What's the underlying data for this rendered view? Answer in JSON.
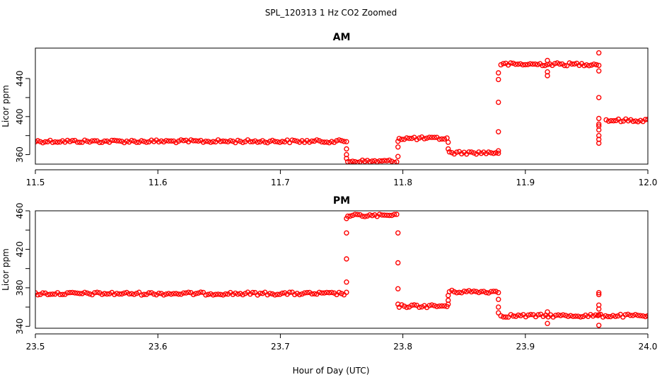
{
  "figure": {
    "suptitle": "SPL_120313 1 Hz CO2 Zoomed",
    "xlabel": "Hour of Day (UTC)",
    "point_color": "#ff0000"
  },
  "chart_data": [
    {
      "type": "scatter",
      "title": "AM",
      "xlabel": "Hour of Day (UTC)",
      "ylabel": "Licor ppm",
      "xlim": [
        11.5,
        12.0
      ],
      "ylim": [
        350,
        472
      ],
      "x_ticks": [
        "11.5",
        "11.6",
        "11.7",
        "11.8",
        "11.9",
        "12.0"
      ],
      "y_ticks": [
        "360",
        "400",
        "440"
      ],
      "marker": "open-circle",
      "color": "#ff0000",
      "segments": [
        {
          "x_start": 11.5,
          "x_end": 11.754,
          "y": 374
        },
        {
          "x_start": 11.755,
          "x_end": 11.795,
          "y": 353
        },
        {
          "x_start": 11.797,
          "x_end": 11.836,
          "y": 377
        },
        {
          "x_start": 11.838,
          "x_end": 11.878,
          "y": 362
        },
        {
          "x_start": 11.88,
          "x_end": 11.96,
          "y": 455
        },
        {
          "x_start": 11.966,
          "x_end": 12.0,
          "y": 396
        }
      ],
      "transitions": [
        {
          "x": 11.754,
          "values": [
            366,
            360,
            356
          ]
        },
        {
          "x": 11.796,
          "values": [
            358,
            368,
            374
          ]
        },
        {
          "x": 11.837,
          "values": [
            373,
            366
          ]
        },
        {
          "x": 11.878,
          "values": [
            364,
            384,
            415,
            439,
            446
          ]
        },
        {
          "x": 11.918,
          "values": [
            447,
            443,
            459
          ]
        },
        {
          "x": 11.96,
          "values": [
            467,
            448,
            420,
            398,
            390,
            376,
            372,
            380,
            386,
            392
          ]
        }
      ]
    },
    {
      "type": "scatter",
      "title": "PM",
      "xlabel": "Hour of Day (UTC)",
      "ylabel": "Licor ppm",
      "xlim": [
        23.5,
        24.0
      ],
      "ylim": [
        338,
        460
      ],
      "x_ticks": [
        "23.5",
        "23.6",
        "23.7",
        "23.8",
        "23.9",
        "24.0"
      ],
      "y_ticks": [
        "340",
        "380",
        "420",
        "460"
      ],
      "marker": "open-circle",
      "color": "#ff0000",
      "segments": [
        {
          "x_start": 23.5,
          "x_end": 23.754,
          "y": 374
        },
        {
          "x_start": 23.755,
          "x_end": 23.795,
          "y": 455
        },
        {
          "x_start": 23.797,
          "x_end": 23.836,
          "y": 361
        },
        {
          "x_start": 23.838,
          "x_end": 23.878,
          "y": 376
        },
        {
          "x_start": 23.88,
          "x_end": 24.0,
          "y": 351
        }
      ],
      "transitions": [
        {
          "x": 23.754,
          "values": [
            386,
            410,
            437,
            452
          ]
        },
        {
          "x": 23.796,
          "values": [
            437,
            406,
            379,
            363
          ]
        },
        {
          "x": 23.837,
          "values": [
            363,
            367,
            372
          ]
        },
        {
          "x": 23.878,
          "values": [
            368,
            360,
            354
          ]
        },
        {
          "x": 23.918,
          "values": [
            355,
            343
          ]
        },
        {
          "x": 23.96,
          "values": [
            375,
            373,
            362,
            358,
            352,
            341
          ]
        }
      ]
    }
  ]
}
